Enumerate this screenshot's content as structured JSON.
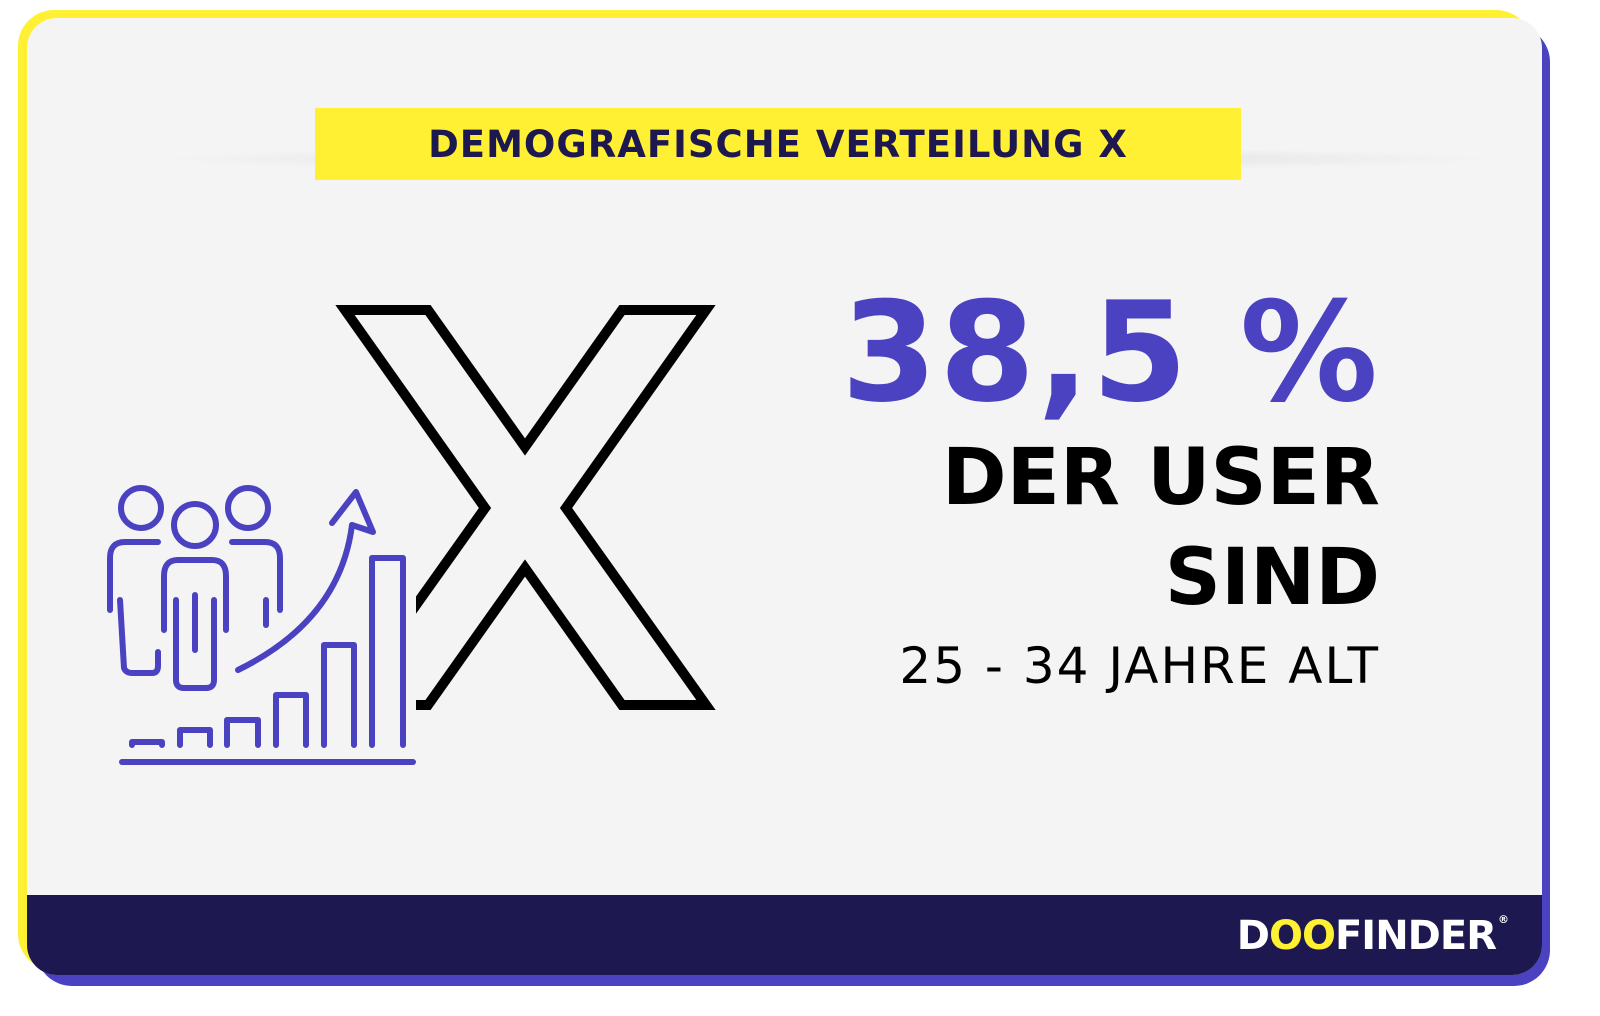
{
  "title": "DEMOGRAFISCHE VERTEILUNG X",
  "stat": {
    "percent": "38,5 %",
    "line1": "DER USER",
    "line2": "SIND",
    "age_range": "25 - 34 JAHRE ALT"
  },
  "brand": {
    "prefix": "D",
    "oo": "OO",
    "suffix": "FINDER",
    "registered": "®"
  },
  "colors": {
    "accent_purple": "#4a42c0",
    "accent_yellow": "#fff033",
    "navy": "#1e1850",
    "background": "#f4f4f4"
  }
}
